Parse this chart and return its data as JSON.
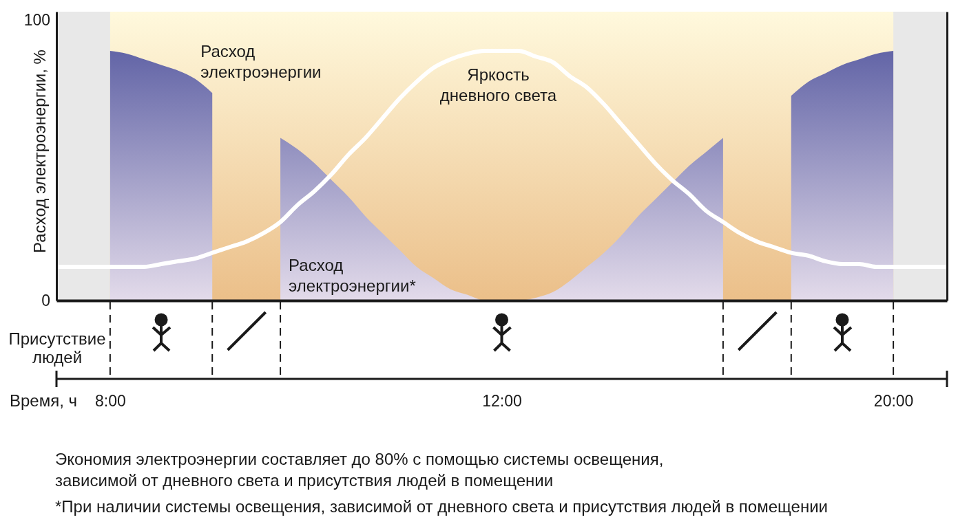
{
  "chart_data": {
    "type": "area",
    "categories": [
      null,
      null,
      null,
      "8:00",
      null,
      null,
      null,
      null,
      null,
      null,
      null,
      null,
      null,
      null,
      null,
      null,
      null,
      null,
      null,
      null,
      null,
      null,
      null,
      null,
      null,
      null,
      "12:00",
      null,
      null,
      null,
      null,
      null,
      null,
      null,
      null,
      null,
      null,
      null,
      null,
      null,
      null,
      null,
      null,
      null,
      null,
      null,
      null,
      null,
      null,
      "20:00",
      null,
      null,
      null
    ],
    "series": [
      {
        "name": "Расход электроэнергии",
        "color": "#4e529c",
        "values": [
          null,
          null,
          null,
          89,
          88,
          86,
          84,
          82,
          79,
          74,
          null,
          null,
          null,
          null,
          null,
          null,
          null,
          null,
          null,
          null,
          null,
          null,
          null,
          null,
          null,
          null,
          null,
          null,
          null,
          null,
          null,
          null,
          null,
          null,
          null,
          null,
          null,
          null,
          null,
          null,
          null,
          null,
          null,
          73,
          78,
          81,
          84,
          86,
          88,
          89,
          null,
          null,
          null
        ]
      },
      {
        "name": "Расход электроэнергии*",
        "color": "#4e529c",
        "values": [
          null,
          null,
          null,
          null,
          null,
          null,
          null,
          null,
          null,
          null,
          null,
          null,
          null,
          58,
          54,
          49,
          43,
          37,
          30,
          24,
          18,
          12,
          8,
          4,
          2,
          0,
          0,
          0,
          1,
          3,
          7,
          12,
          17,
          23,
          30,
          36,
          42,
          48,
          53,
          58,
          null,
          null,
          null,
          null,
          null,
          null,
          null,
          null,
          null,
          null,
          null,
          null,
          null
        ]
      },
      {
        "name": "Яркость дневного света",
        "type": "line",
        "color": "#ffffff",
        "values": [
          12,
          12,
          12,
          12,
          12,
          12,
          13,
          14,
          15,
          17,
          19,
          21,
          24,
          28,
          34,
          39,
          45,
          52,
          58,
          65,
          72,
          78,
          83,
          86,
          88,
          89,
          89,
          89,
          87,
          85,
          80,
          76,
          70,
          63,
          56,
          49,
          43,
          38,
          32,
          28,
          24,
          21,
          19,
          17,
          16,
          14,
          13,
          13,
          12,
          12,
          12,
          12,
          12
        ]
      }
    ],
    "ylim": [
      0,
      103
    ],
    "yticks": [
      0,
      100
    ],
    "ylabel": "Расход электроэнергии, %",
    "xlabel": "Время, ч",
    "annotations": [
      "Присутствие людей",
      "Экономия электроэнергии составляет до 80% с помощью системы освещения,\nзависимой от дневного света и присутствия людей в помещении",
      "*При наличии системы освещения, зависимой от дневного света и присутствия людей в помещении"
    ]
  }
}
